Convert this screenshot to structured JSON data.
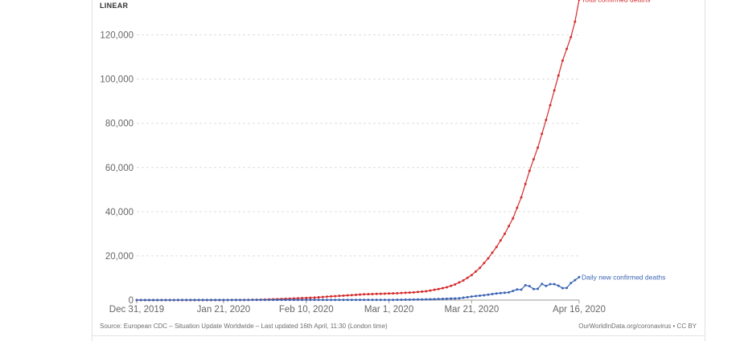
{
  "scale_toggle": "LINEAR",
  "source_text": "Source: European CDC – Situation Update Worldwide – Last updated 16th April, 11:30 (London time)",
  "credit_text": "OurWorldInData.org/coronavirus • CC BY",
  "chart_data": {
    "type": "line",
    "y_scale": "linear",
    "ylim": [
      0,
      130000
    ],
    "y_ticks": [
      0,
      20000,
      40000,
      60000,
      80000,
      100000,
      120000
    ],
    "y_tick_labels": [
      "0",
      "20,000",
      "40,000",
      "60,000",
      "80,000",
      "100,000",
      "120,000"
    ],
    "x_range": [
      "2019-12-31",
      "2020-04-16"
    ],
    "x_ticks": [
      "2019-12-31",
      "2020-01-21",
      "2020-02-10",
      "2020-03-01",
      "2020-03-21",
      "2020-04-16"
    ],
    "x_tick_labels": [
      "Dec 31, 2019",
      "Jan 21, 2020",
      "Feb 10, 2020",
      "Mar 1, 2020",
      "Mar 21, 2020",
      "Apr 16, 2020"
    ],
    "grid": "horizontal dashed",
    "series": [
      {
        "name": "Total confirmed deaths",
        "color": "#d42b2b",
        "points": [
          [
            "2019-12-31",
            0
          ],
          [
            "2020-01-11",
            1
          ],
          [
            "2020-01-20",
            6
          ],
          [
            "2020-01-25",
            41
          ],
          [
            "2020-01-30",
            170
          ],
          [
            "2020-02-04",
            490
          ],
          [
            "2020-02-08",
            813
          ],
          [
            "2020-02-12",
            1113
          ],
          [
            "2020-02-16",
            1666
          ],
          [
            "2020-02-20",
            2121
          ],
          [
            "2020-02-24",
            2619
          ],
          [
            "2020-02-28",
            2859
          ],
          [
            "2020-03-03",
            3110
          ],
          [
            "2020-03-07",
            3500
          ],
          [
            "2020-03-10",
            4000
          ],
          [
            "2020-03-13",
            5000
          ],
          [
            "2020-03-15",
            5800
          ],
          [
            "2020-03-17",
            7100
          ],
          [
            "2020-03-19",
            8900
          ],
          [
            "2020-03-21",
            11300
          ],
          [
            "2020-03-23",
            14600
          ],
          [
            "2020-03-25",
            18900
          ],
          [
            "2020-03-27",
            24000
          ],
          [
            "2020-03-29",
            30000
          ],
          [
            "2020-03-31",
            37000
          ],
          [
            "2020-04-02",
            46500
          ],
          [
            "2020-04-04",
            58500
          ],
          [
            "2020-04-06",
            69000
          ],
          [
            "2020-04-08",
            81500
          ],
          [
            "2020-04-10",
            94900
          ],
          [
            "2020-04-12",
            108400
          ],
          [
            "2020-04-14",
            119000
          ],
          [
            "2020-04-15",
            126000
          ],
          [
            "2020-04-16",
            136000
          ]
        ]
      },
      {
        "name": "Daily new confirmed deaths",
        "color": "#3c64b4",
        "points": [
          [
            "2019-12-31",
            0
          ],
          [
            "2020-02-10",
            100
          ],
          [
            "2020-03-01",
            70
          ],
          [
            "2020-03-10",
            300
          ],
          [
            "2020-03-15",
            600
          ],
          [
            "2020-03-18",
            800
          ],
          [
            "2020-03-21",
            1600
          ],
          [
            "2020-03-24",
            2200
          ],
          [
            "2020-03-27",
            3000
          ],
          [
            "2020-03-30",
            3500
          ],
          [
            "2020-04-01",
            4800
          ],
          [
            "2020-04-02",
            4700
          ],
          [
            "2020-04-03",
            6700
          ],
          [
            "2020-04-04",
            6300
          ],
          [
            "2020-04-05",
            5000
          ],
          [
            "2020-04-06",
            5100
          ],
          [
            "2020-04-07",
            7300
          ],
          [
            "2020-04-08",
            6400
          ],
          [
            "2020-04-09",
            7200
          ],
          [
            "2020-04-10",
            7200
          ],
          [
            "2020-04-11",
            6500
          ],
          [
            "2020-04-12",
            5400
          ],
          [
            "2020-04-13",
            5500
          ],
          [
            "2020-04-14",
            7700
          ],
          [
            "2020-04-16",
            10400
          ]
        ]
      }
    ]
  }
}
